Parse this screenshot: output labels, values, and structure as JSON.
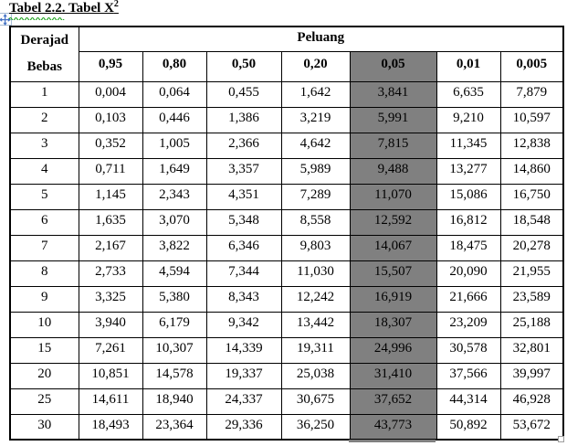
{
  "title": {
    "text": "Tabel 2.2. Tabel X",
    "superscript": "2"
  },
  "colors": {
    "highlight": "#808080",
    "squiggle": "#18a018",
    "move_arrow": "#4472c4"
  },
  "table": {
    "corner_header_line1": "Derajad",
    "corner_header_line2": "Bebas",
    "group_header": "Peluang",
    "columns": [
      "0,95",
      "0,80",
      "0,50",
      "0,20",
      "0,05",
      "0,01",
      "0,005"
    ],
    "highlight_column_index": 4,
    "rows": [
      {
        "df": "1",
        "values": [
          "0,004",
          "0,064",
          "0,455",
          "1,642",
          "3,841",
          "6,635",
          "7,879"
        ]
      },
      {
        "df": "2",
        "values": [
          "0,103",
          "0,446",
          "1,386",
          "3,219",
          "5,991",
          "9,210",
          "10,597"
        ]
      },
      {
        "df": "3",
        "values": [
          "0,352",
          "1,005",
          "2,366",
          "4,642",
          "7,815",
          "11,345",
          "12,838"
        ]
      },
      {
        "df": "4",
        "values": [
          "0,711",
          "1,649",
          "3,357",
          "5,989",
          "9,488",
          "13,277",
          "14,860"
        ]
      },
      {
        "df": "5",
        "values": [
          "1,145",
          "2,343",
          "4,351",
          "7,289",
          "11,070",
          "15,086",
          "16,750"
        ]
      },
      {
        "df": "6",
        "values": [
          "1,635",
          "3,070",
          "5,348",
          "8,558",
          "12,592",
          "16,812",
          "18,548"
        ]
      },
      {
        "df": "7",
        "values": [
          "2,167",
          "3,822",
          "6,346",
          "9,803",
          "14,067",
          "18,475",
          "20,278"
        ]
      },
      {
        "df": "8",
        "values": [
          "2,733",
          "4,594",
          "7,344",
          "11,030",
          "15,507",
          "20,090",
          "21,955"
        ]
      },
      {
        "df": "9",
        "values": [
          "3,325",
          "5,380",
          "8,343",
          "12,242",
          "16,919",
          "21,666",
          "23,589"
        ]
      },
      {
        "df": "10",
        "values": [
          "3,940",
          "6,179",
          "9,342",
          "13,442",
          "18,307",
          "23,209",
          "25,188"
        ]
      },
      {
        "df": "15",
        "values": [
          "7,261",
          "10,307",
          "14,339",
          "19,311",
          "24,996",
          "30,578",
          "32,801"
        ]
      },
      {
        "df": "20",
        "values": [
          "10,851",
          "14,578",
          "19,337",
          "25,038",
          "31,410",
          "37,566",
          "39,997"
        ]
      },
      {
        "df": "25",
        "values": [
          "14,611",
          "18,940",
          "24,337",
          "30,675",
          "37,652",
          "44,314",
          "46,928"
        ]
      },
      {
        "df": "30",
        "values": [
          "18,493",
          "23,364",
          "29,336",
          "36,250",
          "43,773",
          "50,892",
          "53,672"
        ]
      }
    ]
  }
}
